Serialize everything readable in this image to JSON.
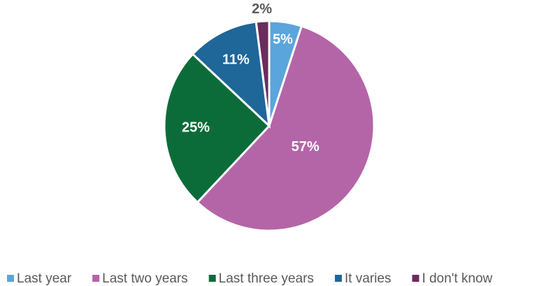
{
  "chart_data": {
    "type": "pie",
    "categories": [
      "Last year",
      "Last two years",
      "Last three years",
      "It varies",
      "I don't know"
    ],
    "values": [
      5,
      57,
      25,
      11,
      2
    ],
    "value_labels": [
      "5%",
      "57%",
      "25%",
      "11%",
      "2%"
    ],
    "colors": [
      "#5aa5dc",
      "#b465a8",
      "#0b6c3a",
      "#1f6699",
      "#6b2c5e"
    ],
    "legend": "bottom"
  }
}
